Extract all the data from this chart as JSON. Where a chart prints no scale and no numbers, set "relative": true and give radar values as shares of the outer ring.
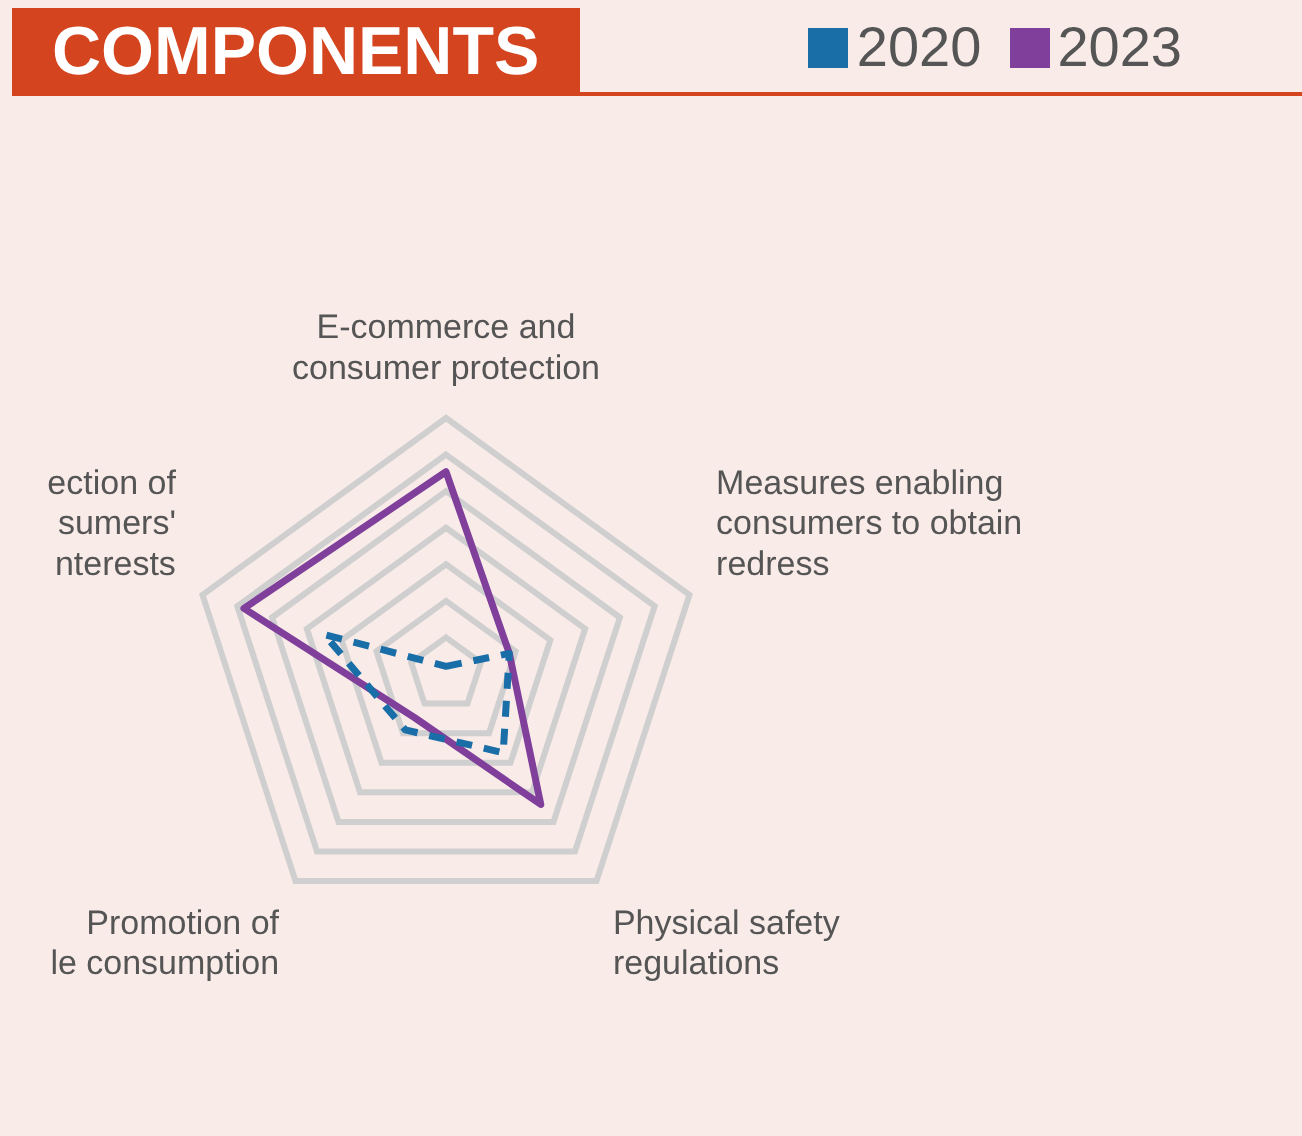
{
  "chart_data": {
    "type": "radar",
    "title": "COMPONENTS",
    "relative": true,
    "legend": "top right",
    "marker": "none",
    "grid": true,
    "categories": [
      "E-commerce and\nconsumer protection",
      "Measures enabling\nconsumers to obtain\nredress",
      "Physical safety\nregulations",
      "Promotion of\nle consumption",
      "ection of\nsumers'\nnterests"
    ],
    "series": [
      {
        "name": "2020",
        "color": "#1a6ea8",
        "line_style": "dashed",
        "values": [
          0.03,
          0.26,
          0.38,
          0.27,
          0.5
        ]
      },
      {
        "name": "2023",
        "color": "#7f3f9a",
        "line_style": "solid",
        "values": [
          0.79,
          0.26,
          0.63,
          0.21,
          0.83
        ]
      }
    ]
  }
}
